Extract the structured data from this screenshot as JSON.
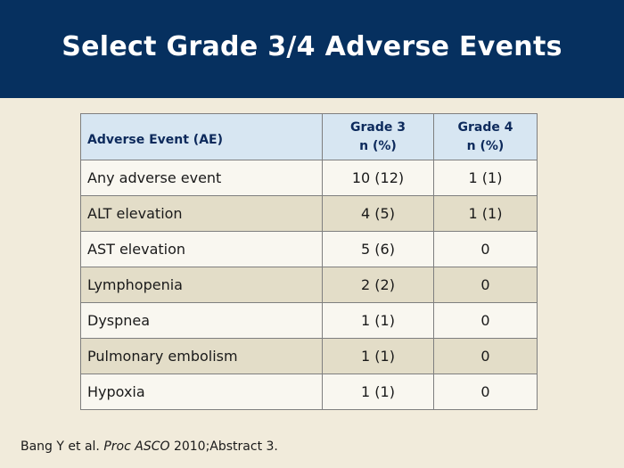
{
  "title": "Select Grade 3/4 Adverse Events",
  "table": {
    "headers": {
      "event": "Adverse Event (AE)",
      "grade3_line1": "Grade 3",
      "grade3_line2": "n (%)",
      "grade4_line1": "Grade 4",
      "grade4_line2": "n (%)"
    },
    "rows": [
      {
        "event": "Any adverse event",
        "grade3": "10 (12)",
        "grade4": "1 (1)"
      },
      {
        "event": "ALT elevation",
        "grade3": "4 (5)",
        "grade4": "1 (1)"
      },
      {
        "event": "AST elevation",
        "grade3": "5 (6)",
        "grade4": "0"
      },
      {
        "event": "Lymphopenia",
        "grade3": "2 (2)",
        "grade4": "0"
      },
      {
        "event": "Dyspnea",
        "grade3": "1 (1)",
        "grade4": "0"
      },
      {
        "event": "Pulmonary embolism",
        "grade3": "1 (1)",
        "grade4": "0"
      },
      {
        "event": "Hypoxia",
        "grade3": "1 (1)",
        "grade4": "0"
      }
    ]
  },
  "citation": {
    "authors": "Bang Y et al.",
    "journal": "Proc ASCO",
    "details": "2010;Abstract 3."
  },
  "colors": {
    "header_bg": "#06305f",
    "slide_bg": "#f1ebdb",
    "table_header_bg": "#d7e6f2",
    "row_alt_bg": "#e3ddc8"
  }
}
